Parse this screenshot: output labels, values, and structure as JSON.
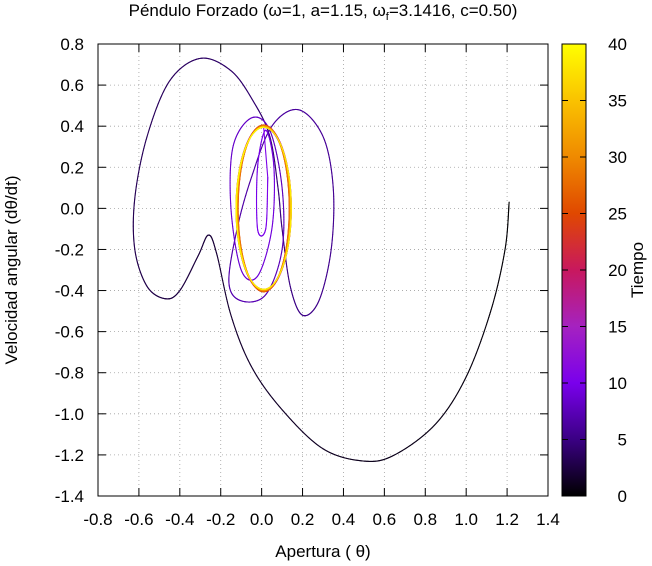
{
  "chart_data": {
    "type": "scatter",
    "title": "Péndulo Forzado (ω=1, a=1.15, ω_f=3.1416, c=0.50)",
    "title_parts": {
      "prefix": "Péndulo Forzado (ω=1, a=1.15, ",
      "omega_f_base": "ω",
      "omega_f_sub": "f",
      "suffix": "=3.1416, c=0.50)"
    },
    "xlabel": "Apertura ( θ)",
    "ylabel": "Velocidad angular (dθ/dt)",
    "xlim": [
      -0.8,
      1.4
    ],
    "ylim": [
      -1.4,
      0.8
    ],
    "xticks": [
      "-0.8",
      "-0.6",
      "-0.4",
      "-0.2",
      "0.0",
      "0.2",
      "0.4",
      "0.6",
      "0.8",
      "1.0",
      "1.2",
      "1.4"
    ],
    "yticks": [
      "-1.4",
      "-1.2",
      "-1.0",
      "-0.8",
      "-0.6",
      "-0.4",
      "-0.2",
      "0.0",
      "0.2",
      "0.4",
      "0.6",
      "0.8"
    ],
    "grid": true,
    "colorbar": {
      "label": "Tiempo",
      "range": [
        0,
        40
      ],
      "ticks": [
        "0",
        "5",
        "10",
        "15",
        "20",
        "25",
        "30",
        "35",
        "40"
      ],
      "colors": [
        "#000000",
        "#3a0083",
        "#7a00ec",
        "#a522c0",
        "#c8185e",
        "#e04800",
        "#ef8a00",
        "#fac200",
        "#ffff00"
      ]
    },
    "series": [
      {
        "name": "",
        "encoding": "color by Tiempo",
        "points": [
          {
            "x": 1.21,
            "y": 0.03,
            "t": 0
          },
          {
            "x": 1.19,
            "y": -0.2,
            "t": 0.2
          },
          {
            "x": 1.12,
            "y": -0.5,
            "t": 0.4
          },
          {
            "x": 1.0,
            "y": -0.82,
            "t": 0.6
          },
          {
            "x": 0.85,
            "y": -1.05,
            "t": 0.8
          },
          {
            "x": 0.65,
            "y": -1.2,
            "t": 1.0
          },
          {
            "x": 0.5,
            "y": -1.23,
            "t": 1.1
          },
          {
            "x": 0.3,
            "y": -1.17,
            "t": 1.3
          },
          {
            "x": 0.1,
            "y": -0.98,
            "t": 1.5
          },
          {
            "x": -0.05,
            "y": -0.77,
            "t": 1.7
          },
          {
            "x": -0.15,
            "y": -0.52,
            "t": 1.9
          },
          {
            "x": -0.22,
            "y": -0.22,
            "t": 2.1
          },
          {
            "x": -0.26,
            "y": -0.13,
            "t": 2.2
          },
          {
            "x": -0.31,
            "y": -0.23,
            "t": 2.3
          },
          {
            "x": -0.4,
            "y": -0.4,
            "t": 2.5
          },
          {
            "x": -0.47,
            "y": -0.44,
            "t": 2.6
          },
          {
            "x": -0.56,
            "y": -0.38,
            "t": 2.8
          },
          {
            "x": -0.62,
            "y": -0.2,
            "t": 3.0
          },
          {
            "x": -0.62,
            "y": 0.05,
            "t": 3.2
          },
          {
            "x": -0.56,
            "y": 0.35,
            "t": 3.4
          },
          {
            "x": -0.45,
            "y": 0.62,
            "t": 3.6
          },
          {
            "x": -0.3,
            "y": 0.73,
            "t": 3.8
          },
          {
            "x": -0.15,
            "y": 0.67,
            "t": 4.0
          },
          {
            "x": -0.04,
            "y": 0.52,
            "t": 4.2
          },
          {
            "x": 0.04,
            "y": 0.35,
            "t": 4.4
          },
          {
            "x": 0.08,
            "y": 0.1,
            "t": 4.6
          },
          {
            "x": 0.1,
            "y": -0.1,
            "t": 4.8
          },
          {
            "x": 0.14,
            "y": -0.38,
            "t": 5.0
          },
          {
            "x": 0.2,
            "y": -0.52,
            "t": 5.2
          },
          {
            "x": 0.28,
            "y": -0.45,
            "t": 5.4
          },
          {
            "x": 0.34,
            "y": -0.2,
            "t": 5.6
          },
          {
            "x": 0.35,
            "y": 0.1,
            "t": 5.8
          },
          {
            "x": 0.3,
            "y": 0.35,
            "t": 6.0
          },
          {
            "x": 0.18,
            "y": 0.48,
            "t": 6.2
          },
          {
            "x": 0.05,
            "y": 0.4,
            "t": 6.4
          },
          {
            "x": -0.05,
            "y": 0.15,
            "t": 6.6
          },
          {
            "x": -0.12,
            "y": -0.1,
            "t": 6.8
          },
          {
            "x": -0.16,
            "y": -0.36,
            "t": 7.0
          },
          {
            "x": -0.1,
            "y": -0.45,
            "t": 7.2
          },
          {
            "x": 0.02,
            "y": -0.42,
            "t": 7.4
          },
          {
            "x": 0.1,
            "y": -0.2,
            "t": 7.6
          },
          {
            "x": 0.1,
            "y": 0.1,
            "t": 7.8
          },
          {
            "x": 0.04,
            "y": 0.38,
            "t": 8.0
          },
          {
            "x": -0.05,
            "y": 0.44,
            "t": 8.2
          },
          {
            "x": -0.14,
            "y": 0.3,
            "t": 8.4
          },
          {
            "x": -0.15,
            "y": 0.0,
            "t": 8.6
          },
          {
            "x": -0.1,
            "y": -0.3,
            "t": 8.8
          },
          {
            "x": -0.02,
            "y": -0.33,
            "t": 9.0
          },
          {
            "x": 0.05,
            "y": -0.1,
            "t": 9.2
          },
          {
            "x": 0.06,
            "y": 0.2,
            "t": 9.4
          },
          {
            "x": 0.02,
            "y": 0.38,
            "t": 9.6
          },
          {
            "x": -0.02,
            "y": 0.2,
            "t": 9.8
          },
          {
            "x": -0.02,
            "y": -0.1,
            "t": 10.0
          },
          {
            "x": 0.02,
            "y": -0.1,
            "t": 10.2
          },
          {
            "x": 0.03,
            "y": 0.15,
            "t": 10.4
          }
        ]
      }
    ],
    "limit_cycle": {
      "encoding": "repeated orbit, Tiempo 10 to 40",
      "center": [
        0.01,
        0.0
      ],
      "x_amplitude": 0.13,
      "y_amplitude": 0.4,
      "t_range": [
        10,
        40
      ],
      "loops": 15
    }
  }
}
